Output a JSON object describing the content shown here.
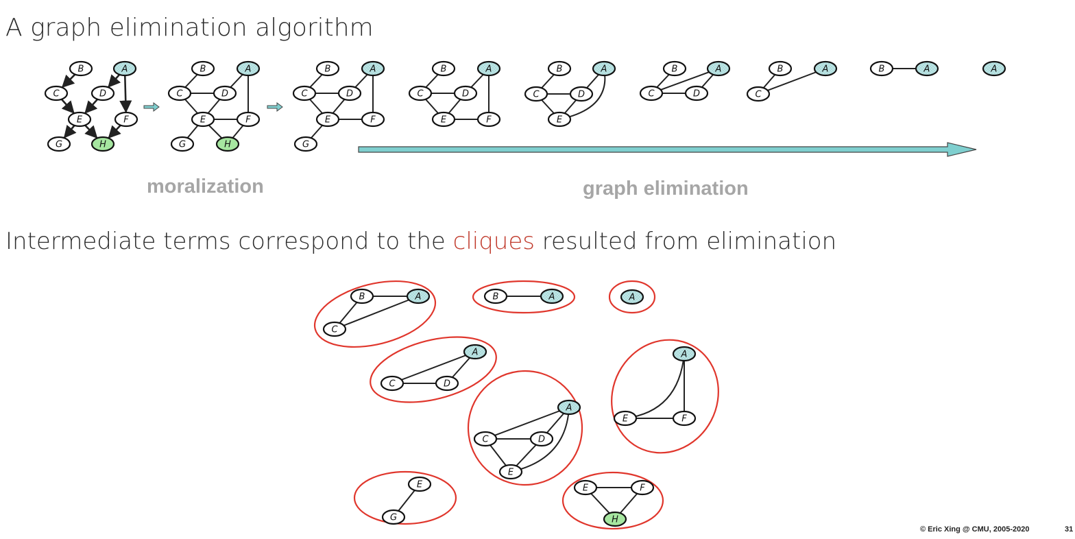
{
  "title": "A graph elimination algorithm",
  "subtitle": {
    "before": "Intermediate terms correspond to the ",
    "highlight": "cliques",
    "after": " resulted from elimination"
  },
  "labels": {
    "moralization": "moralization",
    "graph_elimination": "graph elimination"
  },
  "footer": {
    "copyright": "© Eric Xing @ CMU, 2005-2020",
    "page": "31"
  },
  "colors": {
    "evidence_node": "#b7e3e3",
    "query_node": "#a6e6a0",
    "clique_border": "#e0362c",
    "arrow_fill": "#7fcfcf"
  },
  "graphs": [
    {
      "id": "directed",
      "directed": true,
      "nodes": [
        "B",
        "A",
        "C",
        "D",
        "E",
        "F",
        "G",
        "H"
      ],
      "edges": [
        [
          "B",
          "C"
        ],
        [
          "A",
          "D"
        ],
        [
          "A",
          "F"
        ],
        [
          "C",
          "E"
        ],
        [
          "D",
          "E"
        ],
        [
          "F",
          "H"
        ],
        [
          "E",
          "G"
        ],
        [
          "E",
          "H"
        ]
      ]
    },
    {
      "id": "moral",
      "directed": false,
      "nodes": [
        "B",
        "A",
        "C",
        "D",
        "E",
        "F",
        "G",
        "H"
      ],
      "edges": [
        [
          "B",
          "C"
        ],
        [
          "C",
          "D"
        ],
        [
          "A",
          "D"
        ],
        [
          "A",
          "F"
        ],
        [
          "C",
          "E"
        ],
        [
          "D",
          "E"
        ],
        [
          "E",
          "F"
        ],
        [
          "E",
          "G"
        ],
        [
          "E",
          "H"
        ],
        [
          "F",
          "H"
        ]
      ]
    },
    {
      "id": "elim-H",
      "nodes": [
        "B",
        "A",
        "C",
        "D",
        "E",
        "F",
        "G"
      ],
      "edges": [
        [
          "B",
          "C"
        ],
        [
          "C",
          "D"
        ],
        [
          "A",
          "D"
        ],
        [
          "A",
          "F"
        ],
        [
          "C",
          "E"
        ],
        [
          "D",
          "E"
        ],
        [
          "E",
          "F"
        ],
        [
          "E",
          "G"
        ]
      ]
    },
    {
      "id": "elim-G",
      "nodes": [
        "B",
        "A",
        "C",
        "D",
        "E",
        "F"
      ],
      "edges": [
        [
          "B",
          "C"
        ],
        [
          "C",
          "D"
        ],
        [
          "A",
          "D"
        ],
        [
          "A",
          "F"
        ],
        [
          "C",
          "E"
        ],
        [
          "D",
          "E"
        ],
        [
          "E",
          "F"
        ]
      ]
    },
    {
      "id": "elim-F",
      "nodes": [
        "B",
        "A",
        "C",
        "D",
        "E"
      ],
      "edges": [
        [
          "B",
          "C"
        ],
        [
          "C",
          "D"
        ],
        [
          "A",
          "D"
        ],
        [
          "C",
          "E"
        ],
        [
          "D",
          "E"
        ],
        [
          "A",
          "E"
        ]
      ]
    },
    {
      "id": "elim-E",
      "nodes": [
        "B",
        "A",
        "C",
        "D"
      ],
      "edges": [
        [
          "B",
          "C"
        ],
        [
          "A",
          "C"
        ],
        [
          "C",
          "D"
        ],
        [
          "A",
          "D"
        ]
      ]
    },
    {
      "id": "elim-D",
      "nodes": [
        "B",
        "A",
        "C"
      ],
      "edges": [
        [
          "B",
          "C"
        ],
        [
          "A",
          "C"
        ]
      ]
    },
    {
      "id": "elim-C",
      "nodes": [
        "B",
        "A"
      ],
      "edges": [
        [
          "B",
          "A"
        ]
      ]
    },
    {
      "id": "elim-B",
      "nodes": [
        "A"
      ],
      "edges": []
    }
  ],
  "cliques": [
    {
      "nodes": [
        "B",
        "A",
        "C"
      ],
      "edges": [
        [
          "B",
          "A"
        ],
        [
          "A",
          "C"
        ],
        [
          "B",
          "C"
        ]
      ]
    },
    {
      "nodes": [
        "B",
        "A"
      ],
      "edges": [
        [
          "B",
          "A"
        ]
      ]
    },
    {
      "nodes": [
        "A"
      ],
      "edges": []
    },
    {
      "nodes": [
        "A",
        "C",
        "D"
      ],
      "edges": [
        [
          "A",
          "D"
        ],
        [
          "C",
          "D"
        ],
        [
          "A",
          "C"
        ]
      ]
    },
    {
      "nodes": [
        "A",
        "E",
        "F"
      ],
      "edges": [
        [
          "A",
          "F"
        ],
        [
          "A",
          "E"
        ],
        [
          "E",
          "F"
        ]
      ]
    },
    {
      "nodes": [
        "A",
        "C",
        "D",
        "E"
      ],
      "edges": [
        [
          "C",
          "A"
        ],
        [
          "C",
          "D"
        ],
        [
          "D",
          "A"
        ],
        [
          "C",
          "E"
        ],
        [
          "D",
          "E"
        ],
        [
          "E",
          "A"
        ]
      ]
    },
    {
      "nodes": [
        "E",
        "G"
      ],
      "edges": [
        [
          "E",
          "G"
        ]
      ]
    },
    {
      "nodes": [
        "E",
        "F",
        "H"
      ],
      "edges": [
        [
          "E",
          "F"
        ],
        [
          "E",
          "H"
        ],
        [
          "F",
          "H"
        ]
      ]
    }
  ]
}
